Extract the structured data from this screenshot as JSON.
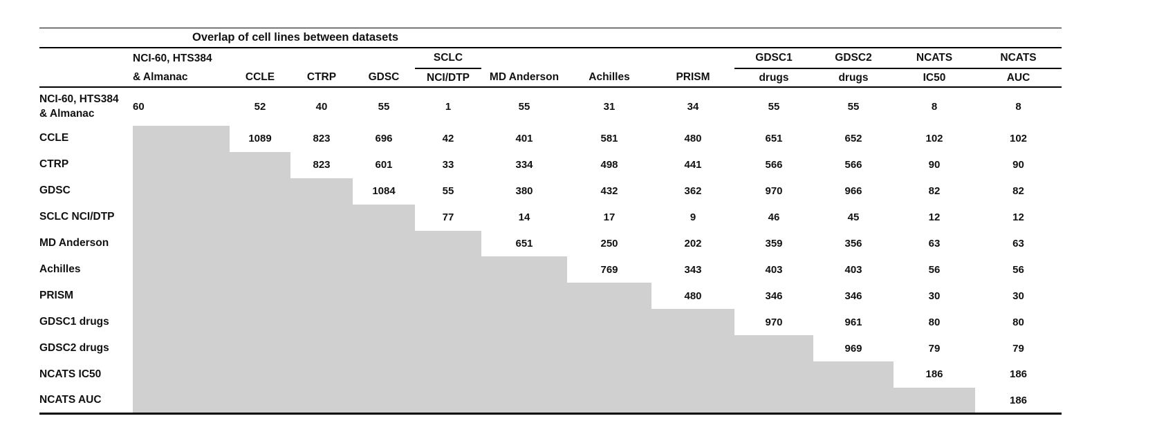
{
  "title": "Overlap of cell lines between datasets",
  "columns": [
    {
      "line1": "NCI-60, HTS384",
      "line2": "& Almanac",
      "underline": false
    },
    {
      "line1": "",
      "line2": "CCLE",
      "underline": false
    },
    {
      "line1": "",
      "line2": "CTRP",
      "underline": false
    },
    {
      "line1": "",
      "line2": "GDSC",
      "underline": false
    },
    {
      "line1": "SCLC",
      "line2": "NCI/DTP",
      "underline": true
    },
    {
      "line1": "",
      "line2": "MD Anderson",
      "underline": false
    },
    {
      "line1": "",
      "line2": "Achilles",
      "underline": false
    },
    {
      "line1": "",
      "line2": "PRISM",
      "underline": false
    },
    {
      "line1": "GDSC1",
      "line2": "drugs",
      "underline": true
    },
    {
      "line1": "GDSC2",
      "line2": "drugs",
      "underline": true
    },
    {
      "line1": "NCATS",
      "line2": "IC50",
      "underline": true
    },
    {
      "line1": "NCATS",
      "line2": "AUC",
      "underline": true
    }
  ],
  "rows": [
    {
      "label_lines": [
        "NCI-60, HTS384",
        "& Almanac"
      ],
      "values": [
        60,
        52,
        40,
        55,
        1,
        55,
        31,
        34,
        55,
        55,
        8,
        8
      ]
    },
    {
      "label_lines": [
        "CCLE"
      ],
      "values": [
        null,
        1089,
        823,
        696,
        42,
        401,
        581,
        480,
        651,
        652,
        102,
        102
      ]
    },
    {
      "label_lines": [
        "CTRP"
      ],
      "values": [
        null,
        null,
        823,
        601,
        33,
        334,
        498,
        441,
        566,
        566,
        90,
        90
      ]
    },
    {
      "label_lines": [
        "GDSC"
      ],
      "values": [
        null,
        null,
        null,
        1084,
        55,
        380,
        432,
        362,
        970,
        966,
        82,
        82
      ]
    },
    {
      "label_lines": [
        "SCLC NCI/DTP"
      ],
      "values": [
        null,
        null,
        null,
        null,
        77,
        14,
        17,
        9,
        46,
        45,
        12,
        12
      ]
    },
    {
      "label_lines": [
        "MD Anderson"
      ],
      "values": [
        null,
        null,
        null,
        null,
        null,
        651,
        250,
        202,
        359,
        356,
        63,
        63
      ]
    },
    {
      "label_lines": [
        "Achilles"
      ],
      "values": [
        null,
        null,
        null,
        null,
        null,
        null,
        769,
        343,
        403,
        403,
        56,
        56
      ]
    },
    {
      "label_lines": [
        "PRISM"
      ],
      "values": [
        null,
        null,
        null,
        null,
        null,
        null,
        null,
        480,
        346,
        346,
        30,
        30
      ]
    },
    {
      "label_lines": [
        "GDSC1 drugs"
      ],
      "values": [
        null,
        null,
        null,
        null,
        null,
        null,
        null,
        null,
        970,
        961,
        80,
        80
      ]
    },
    {
      "label_lines": [
        "GDSC2 drugs"
      ],
      "values": [
        null,
        null,
        null,
        null,
        null,
        null,
        null,
        null,
        null,
        969,
        79,
        79
      ]
    },
    {
      "label_lines": [
        "NCATS IC50"
      ],
      "values": [
        null,
        null,
        null,
        null,
        null,
        null,
        null,
        null,
        null,
        null,
        186,
        186
      ]
    },
    {
      "label_lines": [
        "NCATS AUC"
      ],
      "values": [
        null,
        null,
        null,
        null,
        null,
        null,
        null,
        null,
        null,
        null,
        null,
        186
      ]
    }
  ],
  "colors": {
    "shade": "#d0d0d0",
    "rule": "#000000",
    "text": "#111111"
  }
}
